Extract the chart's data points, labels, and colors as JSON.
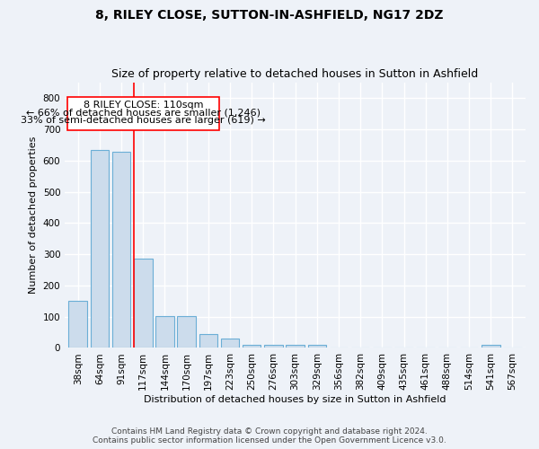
{
  "title": "8, RILEY CLOSE, SUTTON-IN-ASHFIELD, NG17 2DZ",
  "subtitle": "Size of property relative to detached houses in Sutton in Ashfield",
  "xlabel": "Distribution of detached houses by size in Sutton in Ashfield",
  "ylabel": "Number of detached properties",
  "categories": [
    "38sqm",
    "64sqm",
    "91sqm",
    "117sqm",
    "144sqm",
    "170sqm",
    "197sqm",
    "223sqm",
    "250sqm",
    "276sqm",
    "303sqm",
    "329sqm",
    "356sqm",
    "382sqm",
    "409sqm",
    "435sqm",
    "461sqm",
    "488sqm",
    "514sqm",
    "541sqm",
    "567sqm"
  ],
  "values": [
    150,
    635,
    630,
    287,
    102,
    102,
    45,
    30,
    10,
    10,
    10,
    10,
    0,
    0,
    0,
    0,
    0,
    0,
    0,
    10,
    0
  ],
  "bar_color": "#ccdcec",
  "bar_edge_color": "#6baed6",
  "red_line_index": 3,
  "annotation_title": "8 RILEY CLOSE: 110sqm",
  "annotation_line1": "← 66% of detached houses are smaller (1,246)",
  "annotation_line2": "33% of semi-detached houses are larger (619) →",
  "ylim": [
    0,
    850
  ],
  "yticks": [
    0,
    100,
    200,
    300,
    400,
    500,
    600,
    700,
    800
  ],
  "footer1": "Contains HM Land Registry data © Crown copyright and database right 2024.",
  "footer2": "Contains public sector information licensed under the Open Government Licence v3.0.",
  "bg_color": "#eef2f8",
  "grid_color": "#ffffff",
  "title_fontsize": 10,
  "subtitle_fontsize": 9,
  "axis_label_fontsize": 8,
  "tick_fontsize": 7.5
}
